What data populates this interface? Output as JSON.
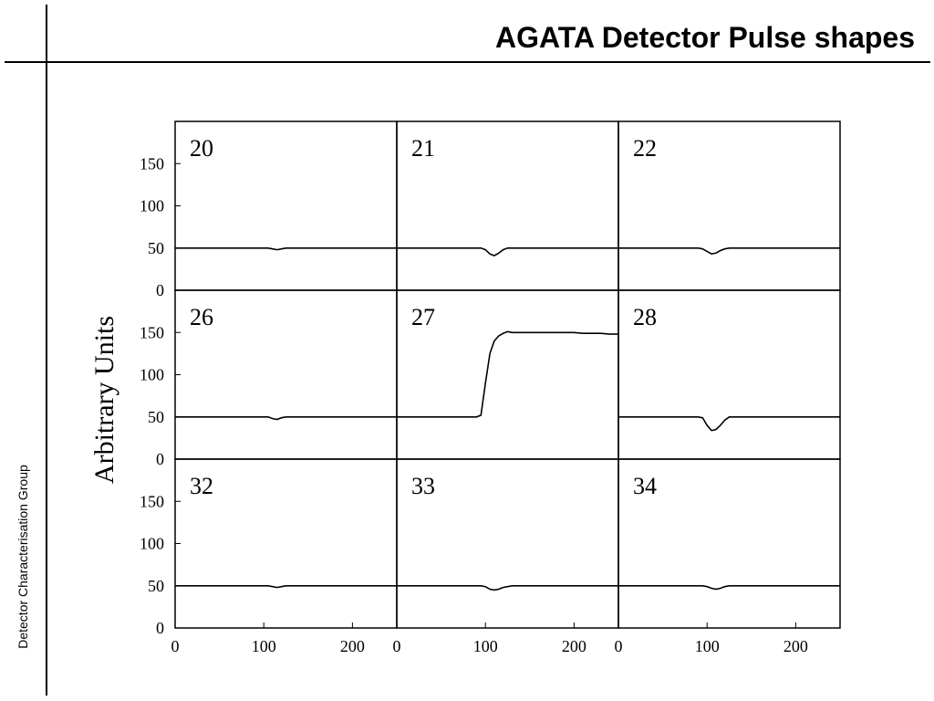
{
  "title": "AGATA Detector Pulse shapes",
  "footer": "Detector Characterisation Group",
  "y_label": "Arbitrary Units",
  "chart_data": [
    {
      "type": "line",
      "title": "20",
      "color": "#000000",
      "xlim": [
        0,
        250
      ],
      "ylim": [
        0,
        200
      ],
      "yticks": [
        0,
        50,
        100,
        150
      ],
      "x": [
        0,
        10,
        20,
        30,
        40,
        50,
        60,
        70,
        80,
        90,
        95,
        100,
        105,
        110,
        115,
        120,
        125,
        130,
        140,
        150,
        160,
        170,
        180,
        190,
        200,
        210,
        220,
        230,
        240,
        250
      ],
      "values": [
        50,
        50,
        50,
        50,
        50,
        50,
        50,
        50,
        50,
        50,
        50,
        50,
        50,
        49,
        48,
        49,
        50,
        50,
        50,
        50,
        50,
        50,
        50,
        50,
        50,
        50,
        50,
        50,
        50,
        50
      ]
    },
    {
      "type": "line",
      "title": "21",
      "color": "#000000",
      "xlim": [
        0,
        250
      ],
      "ylim": [
        0,
        200
      ],
      "x": [
        0,
        10,
        20,
        30,
        40,
        50,
        60,
        70,
        80,
        90,
        95,
        100,
        105,
        110,
        115,
        120,
        125,
        130,
        140,
        150,
        160,
        170,
        180,
        190,
        200,
        210,
        220,
        230,
        240,
        250
      ],
      "values": [
        50,
        50,
        50,
        50,
        50,
        50,
        50,
        50,
        50,
        50,
        50,
        48,
        43,
        41,
        44,
        48,
        50,
        50,
        50,
        50,
        50,
        50,
        50,
        50,
        50,
        50,
        50,
        50,
        50,
        50
      ]
    },
    {
      "type": "line",
      "title": "22",
      "color": "#000000",
      "xlim": [
        0,
        250
      ],
      "ylim": [
        0,
        200
      ],
      "x": [
        0,
        10,
        20,
        30,
        40,
        50,
        60,
        70,
        80,
        90,
        95,
        100,
        105,
        110,
        115,
        120,
        125,
        130,
        140,
        150,
        160,
        170,
        180,
        190,
        200,
        210,
        220,
        230,
        240,
        250
      ],
      "values": [
        50,
        50,
        50,
        50,
        50,
        50,
        50,
        50,
        50,
        50,
        49,
        46,
        43,
        44,
        47,
        49,
        50,
        50,
        50,
        50,
        50,
        50,
        50,
        50,
        50,
        50,
        50,
        50,
        50,
        50
      ]
    },
    {
      "type": "line",
      "title": "26",
      "color": "#000000",
      "xlim": [
        0,
        250
      ],
      "ylim": [
        0,
        200
      ],
      "yticks": [
        0,
        50,
        100,
        150
      ],
      "x": [
        0,
        10,
        20,
        30,
        40,
        50,
        60,
        70,
        80,
        90,
        95,
        100,
        105,
        110,
        115,
        120,
        125,
        130,
        140,
        150,
        160,
        170,
        180,
        190,
        200,
        210,
        220,
        230,
        240,
        250
      ],
      "values": [
        50,
        50,
        50,
        50,
        50,
        50,
        50,
        50,
        50,
        50,
        50,
        50,
        50,
        48,
        47,
        49,
        50,
        50,
        50,
        50,
        50,
        50,
        50,
        50,
        50,
        50,
        50,
        50,
        50,
        50
      ]
    },
    {
      "type": "line",
      "title": "27",
      "color": "#000000",
      "xlim": [
        0,
        250
      ],
      "ylim": [
        0,
        200
      ],
      "x": [
        0,
        10,
        20,
        30,
        40,
        50,
        60,
        70,
        80,
        90,
        95,
        100,
        105,
        110,
        115,
        120,
        125,
        130,
        140,
        150,
        160,
        170,
        180,
        190,
        200,
        210,
        220,
        230,
        240,
        250
      ],
      "values": [
        50,
        50,
        50,
        50,
        50,
        50,
        50,
        50,
        50,
        50,
        52,
        90,
        125,
        140,
        146,
        149,
        151,
        150,
        150,
        150,
        150,
        150,
        150,
        150,
        150,
        149,
        149,
        149,
        148,
        148
      ]
    },
    {
      "type": "line",
      "title": "28",
      "color": "#000000",
      "xlim": [
        0,
        250
      ],
      "ylim": [
        0,
        200
      ],
      "x": [
        0,
        10,
        20,
        30,
        40,
        50,
        60,
        70,
        80,
        90,
        95,
        100,
        105,
        110,
        115,
        120,
        125,
        130,
        140,
        150,
        160,
        170,
        180,
        190,
        200,
        210,
        220,
        230,
        240,
        250
      ],
      "values": [
        50,
        50,
        50,
        50,
        50,
        50,
        50,
        50,
        50,
        50,
        49,
        40,
        34,
        35,
        40,
        46,
        50,
        50,
        50,
        50,
        50,
        50,
        50,
        50,
        50,
        50,
        50,
        50,
        50,
        50
      ]
    },
    {
      "type": "line",
      "title": "32",
      "color": "#000000",
      "xlim": [
        0,
        250
      ],
      "ylim": [
        0,
        200
      ],
      "yticks": [
        0,
        50,
        100,
        150
      ],
      "xticks": [
        0,
        100,
        200
      ],
      "x": [
        0,
        10,
        20,
        30,
        40,
        50,
        60,
        70,
        80,
        90,
        95,
        100,
        105,
        110,
        115,
        120,
        125,
        130,
        140,
        150,
        160,
        170,
        180,
        190,
        200,
        210,
        220,
        230,
        240,
        250
      ],
      "values": [
        50,
        50,
        50,
        50,
        50,
        50,
        50,
        50,
        50,
        50,
        50,
        50,
        50,
        49,
        48,
        49,
        50,
        50,
        50,
        50,
        50,
        50,
        50,
        50,
        50,
        50,
        50,
        50,
        50,
        50
      ]
    },
    {
      "type": "line",
      "title": "33",
      "color": "#000000",
      "xlim": [
        0,
        250
      ],
      "ylim": [
        0,
        200
      ],
      "xticks": [
        0,
        100,
        200
      ],
      "x": [
        0,
        10,
        20,
        30,
        40,
        50,
        60,
        70,
        80,
        90,
        95,
        100,
        105,
        110,
        115,
        120,
        125,
        130,
        140,
        150,
        160,
        170,
        180,
        190,
        200,
        210,
        220,
        230,
        240,
        250
      ],
      "values": [
        50,
        50,
        50,
        50,
        50,
        50,
        50,
        50,
        50,
        50,
        50,
        49,
        46,
        45,
        46,
        48,
        49,
        50,
        50,
        50,
        50,
        50,
        50,
        50,
        50,
        50,
        50,
        50,
        50,
        50
      ]
    },
    {
      "type": "line",
      "title": "34",
      "color": "#000000",
      "xlim": [
        0,
        250
      ],
      "ylim": [
        0,
        200
      ],
      "xticks": [
        0,
        100,
        200
      ],
      "x": [
        0,
        10,
        20,
        30,
        40,
        50,
        60,
        70,
        80,
        90,
        95,
        100,
        105,
        110,
        115,
        120,
        125,
        130,
        140,
        150,
        160,
        170,
        180,
        190,
        200,
        210,
        220,
        230,
        240,
        250
      ],
      "values": [
        50,
        50,
        50,
        50,
        50,
        50,
        50,
        50,
        50,
        50,
        50,
        49,
        47,
        46,
        47,
        49,
        50,
        50,
        50,
        50,
        50,
        50,
        50,
        50,
        50,
        50,
        50,
        50,
        50,
        50
      ]
    }
  ]
}
